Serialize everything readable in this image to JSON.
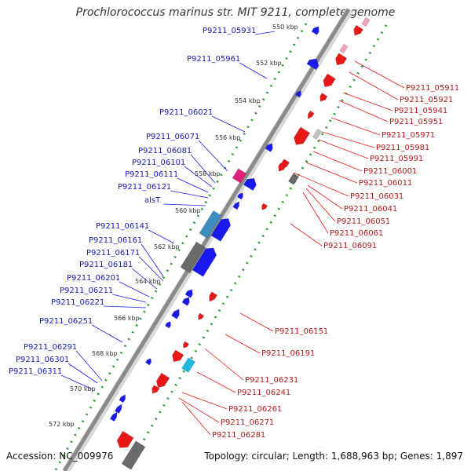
{
  "title": "Prochlorococcus marinus str. MIT 9211, complete genome",
  "accession": "Accession: NC_009976",
  "summary": "Topology: circular; Length: 1,688,963 bp; Genes: 1,897",
  "colors": {
    "forward": "#1a1af0",
    "reverse": "#e81818",
    "backbone": "#8a8a8a",
    "forward_tick": "#2e9e2e",
    "reverse_tick": "#2e9e2e"
  },
  "kbp_ticks": [
    "550 kbp",
    "552 kbp",
    "554 kbp",
    "556 kbp",
    "558 kbp",
    "560 kbp",
    "562 kbp",
    "564 kbp",
    "566 kbp",
    "568 kbp",
    "570 kbp",
    "572 kbp"
  ],
  "forward_genes": [
    "P9211_05931",
    "P9211_05961",
    "P9211_06021",
    "P9211_06071",
    "P9211_06081",
    "P9211_06101",
    "P9211_06111",
    "P9211_06121",
    "alsT",
    "P9211_06141",
    "P9211_06161",
    "P9211_06171",
    "P9211_06181",
    "P9211_06201",
    "P9211_06211",
    "P9211_06221",
    "P9211_06251",
    "P9211_06291",
    "P9211_06301",
    "P9211_06311"
  ],
  "reverse_genes": [
    "P9211_05911",
    "P9211_05921",
    "P9211_05941",
    "P9211_05951",
    "P9211_05971",
    "P9211_05981",
    "P9211_05991",
    "P9211_06001",
    "P9211_06011",
    "P9211_06031",
    "P9211_06041",
    "P9211_06051",
    "P9211_06061",
    "P9211_06091",
    "P9211_06151",
    "P9211_06191",
    "P9211_06231",
    "P9211_06241",
    "P9211_06261",
    "P9211_06271",
    "P9211_06281"
  ]
}
